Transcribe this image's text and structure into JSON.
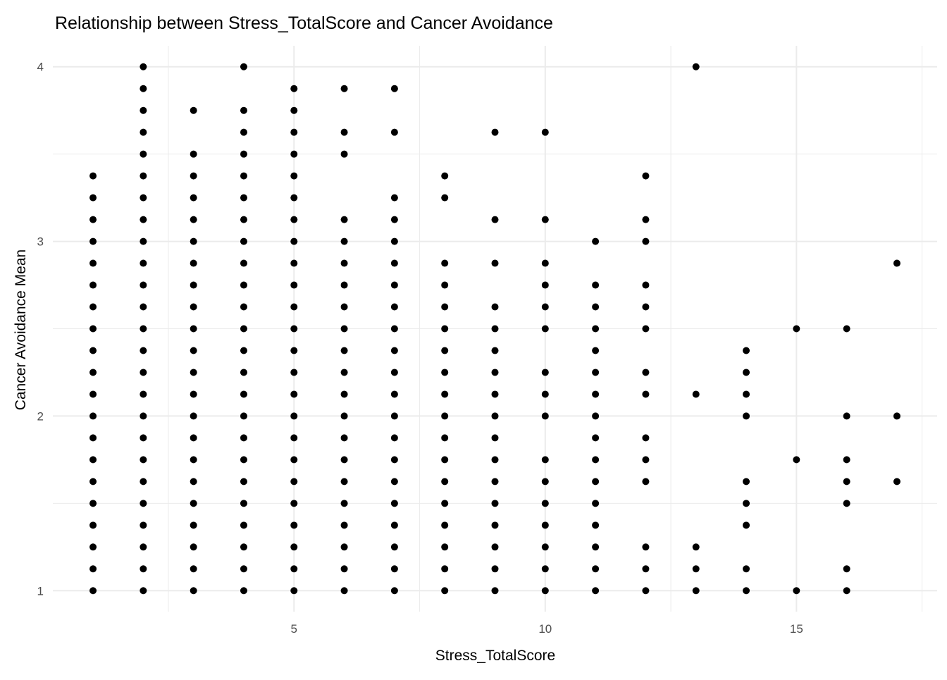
{
  "chart_data": {
    "type": "scatter",
    "title": "Relationship between Stress_TotalScore and Cancer Avoidance",
    "xlabel": "Stress_TotalScore",
    "ylabel": "Cancer Avoidance Mean",
    "xlim": [
      0.2,
      17.8
    ],
    "ylim": [
      0.88,
      4.12
    ],
    "xticks": [
      5,
      10,
      15
    ],
    "xtick_labels": [
      "5",
      "10",
      "15"
    ],
    "yticks": [
      1,
      2,
      3,
      4
    ],
    "ytick_labels": [
      "1",
      "2",
      "3",
      "4"
    ],
    "grid": true,
    "point_color": "#000000",
    "columns": [
      {
        "x": 1,
        "y": [
          1,
          1.125,
          1.25,
          1.375,
          1.5,
          1.625,
          1.75,
          1.875,
          2,
          2.125,
          2.25,
          2.375,
          2.5,
          2.625,
          2.75,
          2.875,
          3,
          3.125,
          3.25,
          3.375
        ]
      },
      {
        "x": 2,
        "y": [
          1,
          1.125,
          1.25,
          1.375,
          1.5,
          1.625,
          1.75,
          1.875,
          2,
          2.125,
          2.25,
          2.375,
          2.5,
          2.625,
          2.75,
          2.875,
          3,
          3.125,
          3.25,
          3.375,
          3.5,
          3.625,
          3.75,
          3.875,
          4
        ]
      },
      {
        "x": 3,
        "y": [
          1,
          1.125,
          1.25,
          1.375,
          1.5,
          1.625,
          1.75,
          1.875,
          2,
          2.125,
          2.25,
          2.375,
          2.5,
          2.625,
          2.75,
          2.875,
          3,
          3.125,
          3.25,
          3.375,
          3.5,
          3.75
        ]
      },
      {
        "x": 4,
        "y": [
          1,
          1.125,
          1.25,
          1.375,
          1.5,
          1.625,
          1.75,
          1.875,
          2,
          2.125,
          2.25,
          2.375,
          2.5,
          2.625,
          2.75,
          2.875,
          3,
          3.125,
          3.25,
          3.375,
          3.5,
          3.625,
          3.75,
          4
        ]
      },
      {
        "x": 5,
        "y": [
          1,
          1.125,
          1.25,
          1.375,
          1.5,
          1.625,
          1.75,
          1.875,
          2,
          2.125,
          2.25,
          2.375,
          2.5,
          2.625,
          2.75,
          2.875,
          3,
          3.125,
          3.25,
          3.375,
          3.5,
          3.625,
          3.75,
          3.875
        ]
      },
      {
        "x": 6,
        "y": [
          1,
          1.125,
          1.25,
          1.375,
          1.5,
          1.625,
          1.75,
          1.875,
          2,
          2.125,
          2.25,
          2.375,
          2.5,
          2.625,
          2.75,
          2.875,
          3,
          3.125,
          3.5,
          3.625,
          3.875
        ]
      },
      {
        "x": 7,
        "y": [
          1,
          1.125,
          1.25,
          1.375,
          1.5,
          1.625,
          1.75,
          1.875,
          2,
          2.125,
          2.25,
          2.375,
          2.5,
          2.625,
          2.75,
          2.875,
          3,
          3.125,
          3.25,
          3.625,
          3.875
        ]
      },
      {
        "x": 8,
        "y": [
          1,
          1.125,
          1.25,
          1.375,
          1.5,
          1.625,
          1.75,
          1.875,
          2,
          2.125,
          2.25,
          2.375,
          2.5,
          2.625,
          2.75,
          2.875,
          3.25,
          3.375
        ]
      },
      {
        "x": 9,
        "y": [
          1,
          1.125,
          1.25,
          1.375,
          1.5,
          1.625,
          1.75,
          1.875,
          2,
          2.125,
          2.25,
          2.375,
          2.5,
          2.625,
          2.875,
          3.125,
          3.625
        ]
      },
      {
        "x": 10,
        "y": [
          1,
          1.125,
          1.25,
          1.375,
          1.5,
          1.625,
          1.75,
          2,
          2.125,
          2.25,
          2.5,
          2.625,
          2.75,
          2.875,
          3.125,
          3.625
        ]
      },
      {
        "x": 11,
        "y": [
          1,
          1.125,
          1.25,
          1.375,
          1.5,
          1.625,
          1.75,
          1.875,
          2,
          2.125,
          2.25,
          2.375,
          2.5,
          2.625,
          2.75,
          3
        ]
      },
      {
        "x": 12,
        "y": [
          1,
          1.125,
          1.25,
          1.625,
          1.75,
          1.875,
          2.125,
          2.25,
          2.5,
          2.625,
          2.75,
          3,
          3.125,
          3.375
        ]
      },
      {
        "x": 13,
        "y": [
          1,
          1.125,
          1.25,
          2.125,
          4
        ]
      },
      {
        "x": 14,
        "y": [
          1,
          1.125,
          1.375,
          1.5,
          1.625,
          2,
          2.125,
          2.25,
          2.375
        ]
      },
      {
        "x": 15,
        "y": [
          1,
          1.75,
          2.5
        ]
      },
      {
        "x": 16,
        "y": [
          1,
          1.125,
          1.5,
          1.625,
          1.75,
          2,
          2.5
        ]
      },
      {
        "x": 17,
        "y": [
          1.625,
          2,
          2.875
        ]
      }
    ]
  }
}
